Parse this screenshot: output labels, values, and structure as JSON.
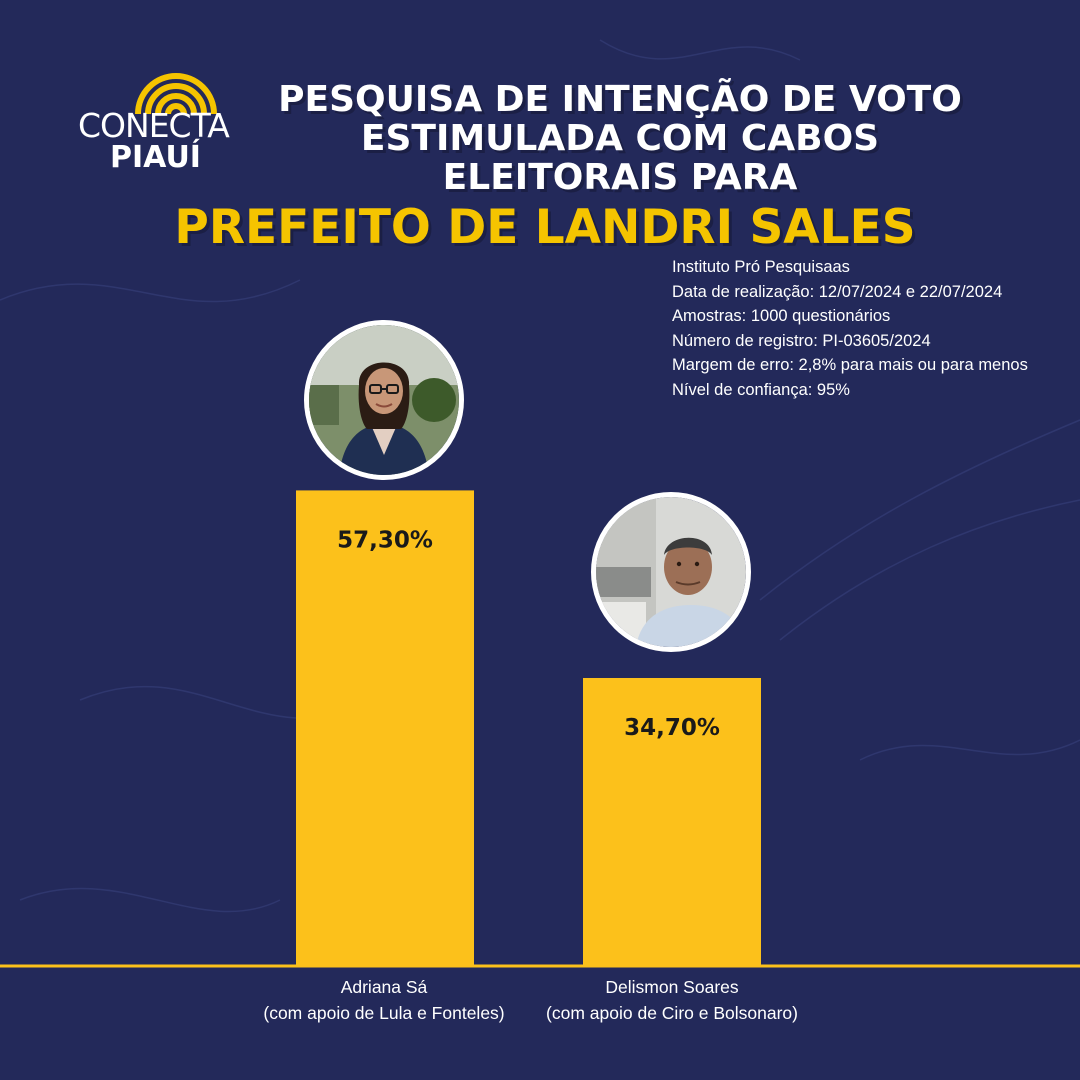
{
  "logo": {
    "word1": "CONECTA",
    "word2": "PIAUÍ"
  },
  "header": {
    "title_lines": [
      "PESQUISA DE INTENÇÃO DE VOTO",
      "ESTIMULADA COM CABOS",
      "ELEITORAIS PARA"
    ],
    "subtitle": "PREFEITO DE LANDRI SALES"
  },
  "survey_info": [
    "Instituto Pró Pesquisaas",
    "Data de realização: 12/07/2024 e 22/07/2024",
    "Amostras: 1000 questionários",
    "Número de registro: PI-03605/2024",
    "Margem de erro: 2,8% para mais ou para menos",
    "Nível de confiança: 95%"
  ],
  "colors": {
    "background": "#23295a",
    "bar": "#fcc11b",
    "title": "#ffffff",
    "subtitle": "#f5c400",
    "baseline": "#fcc11b"
  },
  "candidates": [
    {
      "name": "Adriana Sá",
      "support": "(com apoio de Lula e Fonteles)",
      "photo_icon": "candidate-photo-woman"
    },
    {
      "name": "Delismon Soares",
      "support": "(com apoio de Ciro e Bolsonaro)",
      "photo_icon": "candidate-photo-man"
    }
  ],
  "chart_data": {
    "type": "bar",
    "categories": [
      "Adriana Sá (com apoio de Lula e Fonteles)",
      "Delismon Soares (com apoio de Ciro e Bolsonaro)"
    ],
    "values": [
      57.3,
      34.7
    ],
    "value_labels": [
      "57,30%",
      "34,70%"
    ],
    "unit": "%",
    "ylim": [
      0,
      60
    ],
    "grid": false,
    "legend": "none"
  }
}
